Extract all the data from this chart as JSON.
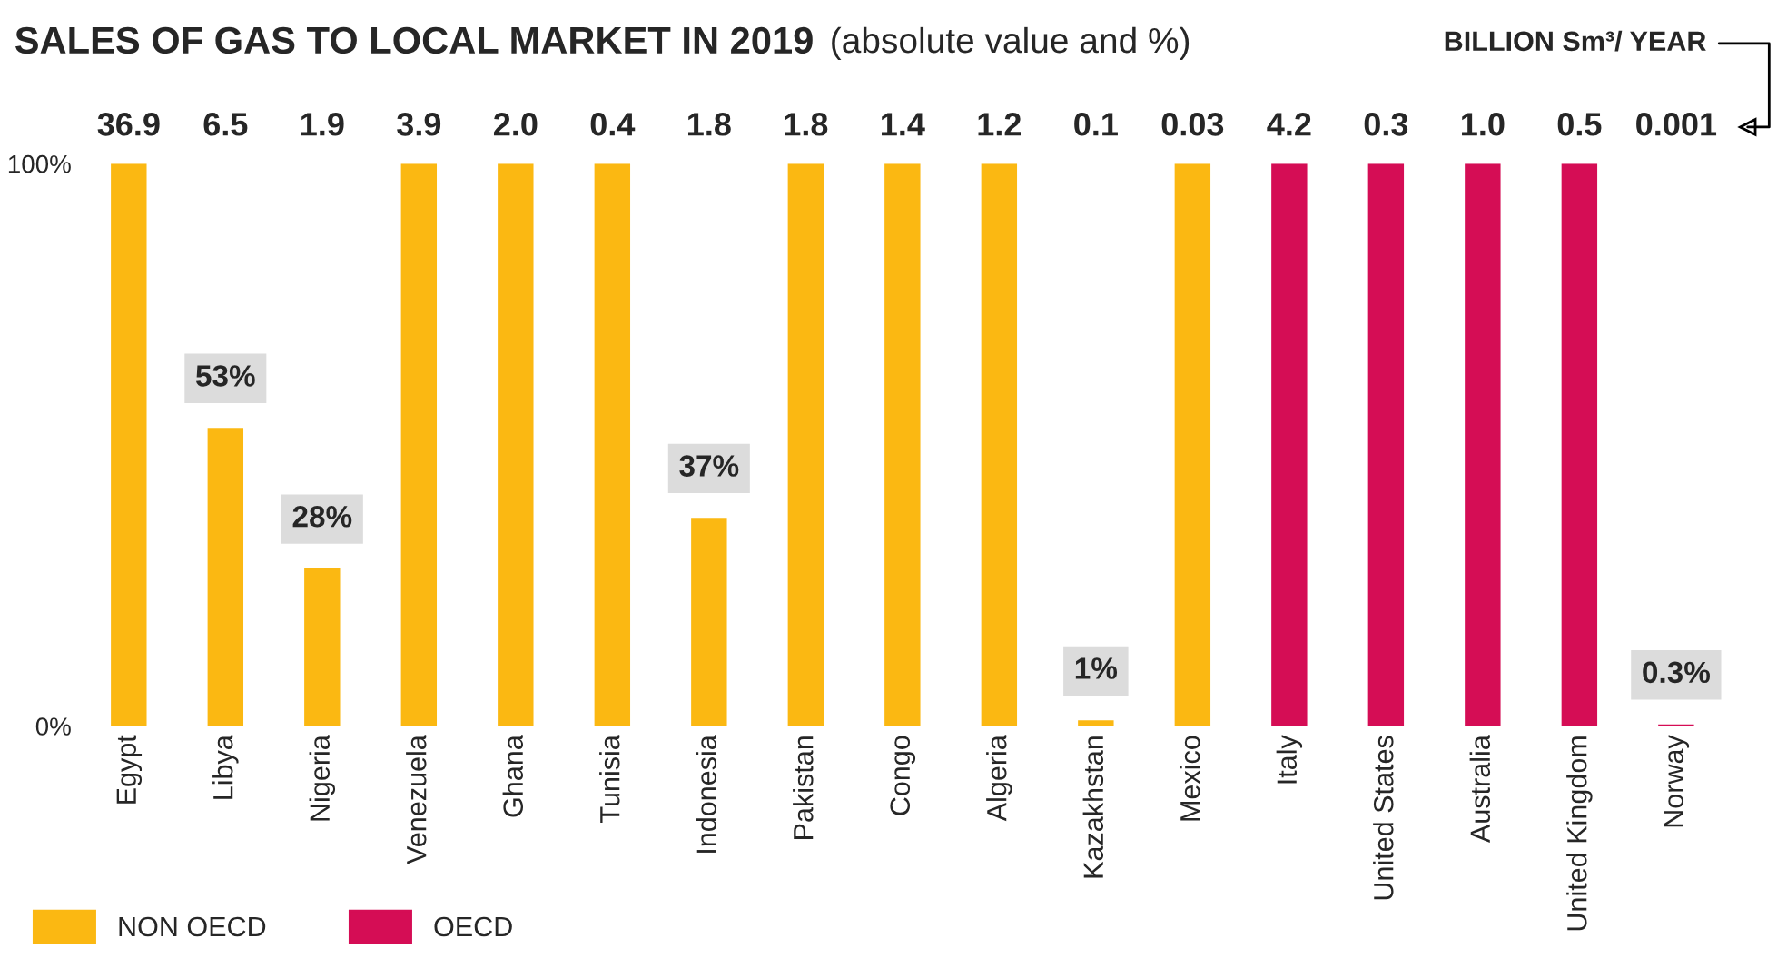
{
  "chart_data": {
    "type": "bar",
    "title": "SALES OF GAS TO LOCAL MARKET IN 2019",
    "subtitle": "(absolute value and %)",
    "categories": [
      "Egypt",
      "Libya",
      "Nigeria",
      "Venezuela",
      "Ghana",
      "Tunisia",
      "Indonesia",
      "Pakistan",
      "Congo",
      "Algeria",
      "Kazakhstan",
      "Mexico",
      "Italy",
      "United States",
      "Australia",
      "United Kingdom",
      "Norway"
    ],
    "series": [
      {
        "name": "NON OECD",
        "color": "#fbb812",
        "values": [
          100,
          53,
          28,
          100,
          100,
          100,
          37,
          100,
          100,
          100,
          1,
          100,
          null,
          null,
          null,
          null,
          null
        ],
        "value_labels": [
          null,
          "53%",
          "28%",
          null,
          null,
          null,
          "37%",
          null,
          null,
          null,
          "1%",
          null,
          null,
          null,
          null,
          null,
          null
        ]
      },
      {
        "name": "OECD",
        "color": "#d50d55",
        "values": [
          null,
          null,
          null,
          null,
          null,
          null,
          null,
          null,
          null,
          null,
          null,
          null,
          100,
          100,
          100,
          100,
          0.3
        ],
        "value_labels": [
          null,
          null,
          null,
          null,
          null,
          null,
          null,
          null,
          null,
          null,
          null,
          null,
          null,
          null,
          null,
          null,
          "0.3%"
        ]
      }
    ],
    "ylim": [
      0,
      100
    ],
    "yticks": [
      {
        "value": 0,
        "label": "0%"
      },
      {
        "value": 100,
        "label": "100%"
      }
    ],
    "grid": false,
    "legend": "bottom left",
    "annotations": [
      "BILLION Sm³/ YEAR",
      "36.9",
      "6.5",
      "1.9",
      "3.9",
      "2.0",
      "0.4",
      "1.8",
      "1.8",
      "1.4",
      "1.2",
      "0.1",
      "0.03",
      "4.2",
      "0.3",
      "1.0",
      "0.5",
      "0.001"
    ]
  }
}
